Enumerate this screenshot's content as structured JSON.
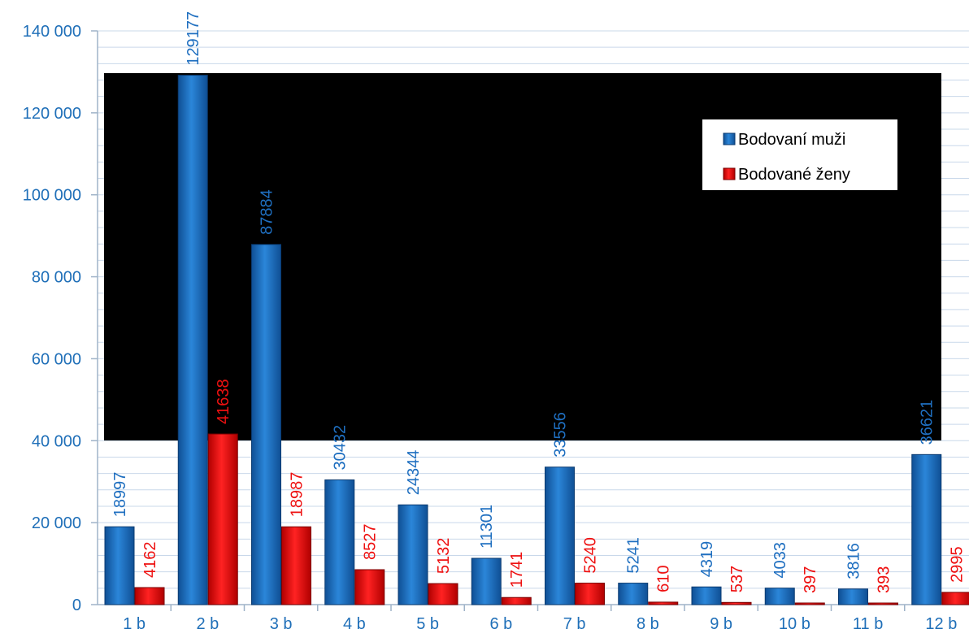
{
  "chart_data": {
    "type": "bar",
    "categories": [
      "1 b",
      "2 b",
      "3 b",
      "4 b",
      "5 b",
      "6 b",
      "7 b",
      "8 b",
      "9 b",
      "10 b",
      "11 b",
      "12 b"
    ],
    "series": [
      {
        "name": "Bodovaní muži",
        "values": [
          18997,
          129177,
          87884,
          30432,
          24344,
          11301,
          33556,
          5241,
          4319,
          4033,
          3816,
          36621
        ],
        "color": "#1f6fc0",
        "label_color": "#1f6fc0"
      },
      {
        "name": "Bodované ženy",
        "values": [
          4162,
          41638,
          18987,
          8527,
          5132,
          1741,
          5240,
          610,
          537,
          397,
          393,
          2995
        ],
        "color": "#ee1111",
        "label_color": "#ee1111"
      }
    ],
    "y_ticks": [
      "0",
      "20 000",
      "40 000",
      "60 000",
      "80 000",
      "100 000",
      "120 000",
      "140 000"
    ],
    "ylim": [
      0,
      140000
    ],
    "legend_position": "top-right",
    "plot_background": "black-panel",
    "grid": true
  }
}
